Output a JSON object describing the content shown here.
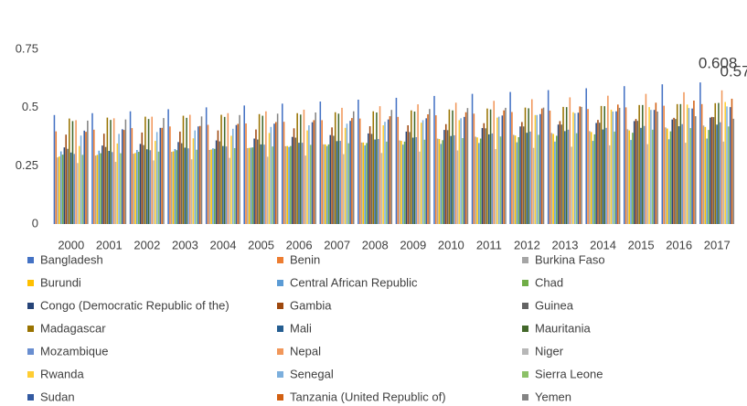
{
  "chart_data": {
    "type": "bar",
    "categories": [
      "2000",
      "2001",
      "2002",
      "2003",
      "2004",
      "2005",
      "2006",
      "2007",
      "2008",
      "2009",
      "2010",
      "2011",
      "2012",
      "2013",
      "2014",
      "2015",
      "2016",
      "2017"
    ],
    "ylim": [
      0,
      0.9
    ],
    "yticks": [
      0,
      0.25,
      0.5,
      0.75
    ],
    "grid": false,
    "legend": "bottom",
    "series": [
      {
        "name": "Bangladesh",
        "color": "#4472c4",
        "values": [
          0.468,
          0.476,
          0.484,
          0.493,
          0.501,
          0.509,
          0.517,
          0.526,
          0.534,
          0.542,
          0.55,
          0.559,
          0.567,
          0.575,
          0.583,
          0.592,
          0.6,
          0.608
        ],
        "value_labels": [
          null,
          null,
          null,
          null,
          null,
          null,
          null,
          null,
          null,
          null,
          null,
          null,
          null,
          null,
          null,
          null,
          null,
          "0.608"
        ]
      },
      {
        "name": "Benin",
        "color": "#ed7d31",
        "values": [
          0.398,
          0.405,
          0.412,
          0.419,
          0.426,
          0.432,
          0.439,
          0.446,
          0.453,
          0.46,
          0.467,
          0.474,
          0.481,
          0.487,
          0.494,
          0.501,
          0.508,
          0.515
        ]
      },
      {
        "name": "Burkina Faso",
        "color": "#a5a5a5",
        "values": [
          0.286,
          0.294,
          0.302,
          0.31,
          0.318,
          0.326,
          0.334,
          0.342,
          0.35,
          0.359,
          0.367,
          0.375,
          0.383,
          0.391,
          0.399,
          0.407,
          0.415,
          0.423
        ]
      },
      {
        "name": "Burundi",
        "color": "#ffc000",
        "values": [
          0.29,
          0.297,
          0.305,
          0.312,
          0.32,
          0.327,
          0.335,
          0.342,
          0.35,
          0.357,
          0.365,
          0.372,
          0.38,
          0.387,
          0.395,
          0.402,
          0.41,
          0.417
        ]
      },
      {
        "name": "Central African Republic",
        "color": "#5b9bd5",
        "values": [
          0.312,
          0.315,
          0.318,
          0.322,
          0.325,
          0.328,
          0.331,
          0.335,
          0.338,
          0.341,
          0.344,
          0.348,
          0.351,
          0.354,
          0.357,
          0.361,
          0.364,
          0.367
        ]
      },
      {
        "name": "Chad",
        "color": "#70ad47",
        "values": [
          0.298,
          0.304,
          0.31,
          0.317,
          0.323,
          0.329,
          0.335,
          0.342,
          0.348,
          0.354,
          0.36,
          0.367,
          0.373,
          0.379,
          0.385,
          0.392,
          0.398,
          0.404
        ]
      },
      {
        "name": "Congo (Democratic Republic of the)",
        "color": "#264478",
        "values": [
          0.329,
          0.337,
          0.344,
          0.352,
          0.359,
          0.367,
          0.374,
          0.382,
          0.389,
          0.397,
          0.404,
          0.412,
          0.419,
          0.427,
          0.434,
          0.442,
          0.449,
          0.457
        ]
      },
      {
        "name": "Gambia",
        "color": "#9e480e",
        "values": [
          0.384,
          0.388,
          0.393,
          0.397,
          0.402,
          0.406,
          0.411,
          0.415,
          0.42,
          0.424,
          0.429,
          0.433,
          0.438,
          0.442,
          0.447,
          0.451,
          0.456,
          0.46
        ]
      },
      {
        "name": "Guinea",
        "color": "#636363",
        "values": [
          0.323,
          0.331,
          0.339,
          0.347,
          0.355,
          0.363,
          0.371,
          0.379,
          0.387,
          0.395,
          0.403,
          0.411,
          0.419,
          0.427,
          0.435,
          0.443,
          0.451,
          0.459
        ]
      },
      {
        "name": "Madagascar",
        "color": "#997300",
        "values": [
          0.453,
          0.457,
          0.461,
          0.465,
          0.469,
          0.472,
          0.476,
          0.48,
          0.484,
          0.488,
          0.492,
          0.496,
          0.5,
          0.503,
          0.507,
          0.511,
          0.515,
          0.519
        ]
      },
      {
        "name": "Mali",
        "color": "#255e91",
        "values": [
          0.307,
          0.314,
          0.321,
          0.328,
          0.335,
          0.342,
          0.349,
          0.356,
          0.363,
          0.371,
          0.378,
          0.385,
          0.392,
          0.399,
          0.406,
          0.413,
          0.42,
          0.427
        ]
      },
      {
        "name": "Mauritania",
        "color": "#43682b",
        "values": [
          0.442,
          0.447,
          0.451,
          0.456,
          0.46,
          0.465,
          0.47,
          0.474,
          0.479,
          0.483,
          0.488,
          0.492,
          0.497,
          0.502,
          0.506,
          0.511,
          0.515,
          0.52
        ]
      },
      {
        "name": "Mozambique",
        "color": "#698ed0",
        "values": [
          0.301,
          0.309,
          0.317,
          0.325,
          0.333,
          0.341,
          0.349,
          0.357,
          0.365,
          0.373,
          0.381,
          0.389,
          0.397,
          0.405,
          0.413,
          0.421,
          0.429,
          0.437
        ]
      },
      {
        "name": "Nepal",
        "color": "#f1975a",
        "values": [
          0.446,
          0.454,
          0.461,
          0.469,
          0.476,
          0.484,
          0.491,
          0.499,
          0.506,
          0.514,
          0.521,
          0.529,
          0.536,
          0.544,
          0.551,
          0.559,
          0.566,
          0.574
        ],
        "value_labels": [
          null,
          null,
          null,
          null,
          null,
          null,
          null,
          null,
          null,
          null,
          null,
          null,
          null,
          null,
          null,
          null,
          null,
          "0.574"
        ]
      },
      {
        "name": "Niger",
        "color": "#b7b7b7",
        "values": [
          0.262,
          0.267,
          0.273,
          0.278,
          0.284,
          0.289,
          0.294,
          0.3,
          0.305,
          0.311,
          0.316,
          0.322,
          0.327,
          0.332,
          0.338,
          0.343,
          0.349,
          0.354
        ]
      },
      {
        "name": "Rwanda",
        "color": "#ffcd33",
        "values": [
          0.335,
          0.346,
          0.357,
          0.368,
          0.379,
          0.391,
          0.402,
          0.413,
          0.424,
          0.435,
          0.446,
          0.457,
          0.468,
          0.48,
          0.491,
          0.502,
          0.513,
          0.524
        ]
      },
      {
        "name": "Senegal",
        "color": "#7cafdd",
        "values": [
          0.38,
          0.387,
          0.395,
          0.402,
          0.409,
          0.417,
          0.424,
          0.431,
          0.439,
          0.446,
          0.454,
          0.461,
          0.468,
          0.476,
          0.483,
          0.49,
          0.498,
          0.505
        ]
      },
      {
        "name": "Sierra Leone",
        "color": "#8cc168",
        "values": [
          0.297,
          0.304,
          0.311,
          0.319,
          0.326,
          0.333,
          0.34,
          0.347,
          0.354,
          0.362,
          0.369,
          0.376,
          0.383,
          0.39,
          0.397,
          0.405,
          0.412,
          0.419
        ]
      },
      {
        "name": "Sudan",
        "color": "#335aa1",
        "values": [
          0.401,
          0.407,
          0.413,
          0.419,
          0.425,
          0.431,
          0.437,
          0.443,
          0.449,
          0.454,
          0.46,
          0.466,
          0.472,
          0.478,
          0.484,
          0.49,
          0.496,
          0.502
        ]
      },
      {
        "name": "Tanzania (United Republic of)",
        "color": "#d26012",
        "values": [
          0.396,
          0.404,
          0.413,
          0.421,
          0.43,
          0.438,
          0.446,
          0.455,
          0.463,
          0.471,
          0.48,
          0.488,
          0.496,
          0.505,
          0.513,
          0.521,
          0.53,
          0.538
        ]
      },
      {
        "name": "Yemen",
        "color": "#848484",
        "values": [
          0.444,
          0.449,
          0.455,
          0.462,
          0.468,
          0.474,
          0.479,
          0.484,
          0.49,
          0.494,
          0.498,
          0.499,
          0.5,
          0.503,
          0.499,
          0.483,
          0.463,
          0.452
        ]
      }
    ]
  }
}
